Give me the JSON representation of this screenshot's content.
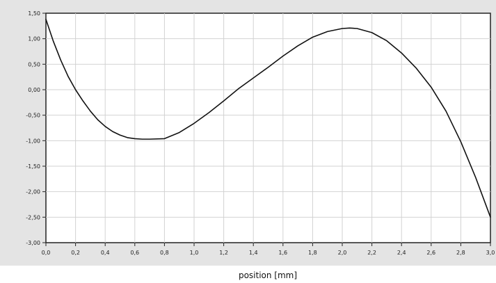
{
  "chart_data": {
    "type": "line",
    "title": "",
    "xlabel": "position [mm]",
    "ylabel": "",
    "xlim": [
      0,
      3
    ],
    "ylim": [
      -3,
      1.5
    ],
    "grid": true,
    "x_ticks": [
      "0,0",
      "0,2",
      "0,4",
      "0,6",
      "0,8",
      "1,0",
      "1,2",
      "1,4",
      "1,6",
      "1,8",
      "2,0",
      "2,2",
      "2,4",
      "2,6",
      "2,8",
      "3,0"
    ],
    "y_ticks": [
      "1,50",
      "1,00",
      "0,50",
      "0,00",
      "-0,50",
      "-1,00",
      "-1,50",
      "-2,00",
      "-2,50",
      "-3,00"
    ],
    "series": [
      {
        "name": "",
        "color": "#111111",
        "x": [
          0.0,
          0.05,
          0.1,
          0.15,
          0.2,
          0.25,
          0.3,
          0.35,
          0.4,
          0.45,
          0.5,
          0.55,
          0.6,
          0.65,
          0.7,
          0.8,
          0.9,
          1.0,
          1.1,
          1.2,
          1.3,
          1.4,
          1.5,
          1.6,
          1.7,
          1.8,
          1.9,
          2.0,
          2.05,
          2.1,
          2.2,
          2.3,
          2.4,
          2.5,
          2.6,
          2.7,
          2.8,
          2.9,
          3.0
        ],
        "y": [
          1.38,
          0.95,
          0.58,
          0.26,
          0.0,
          -0.22,
          -0.42,
          -0.59,
          -0.72,
          -0.82,
          -0.89,
          -0.94,
          -0.96,
          -0.97,
          -0.97,
          -0.96,
          -0.84,
          -0.66,
          -0.45,
          -0.22,
          0.02,
          0.23,
          0.44,
          0.66,
          0.86,
          1.03,
          1.14,
          1.2,
          1.21,
          1.2,
          1.12,
          0.96,
          0.72,
          0.42,
          0.05,
          -0.42,
          -1.02,
          -1.72,
          -2.5
        ]
      }
    ]
  }
}
